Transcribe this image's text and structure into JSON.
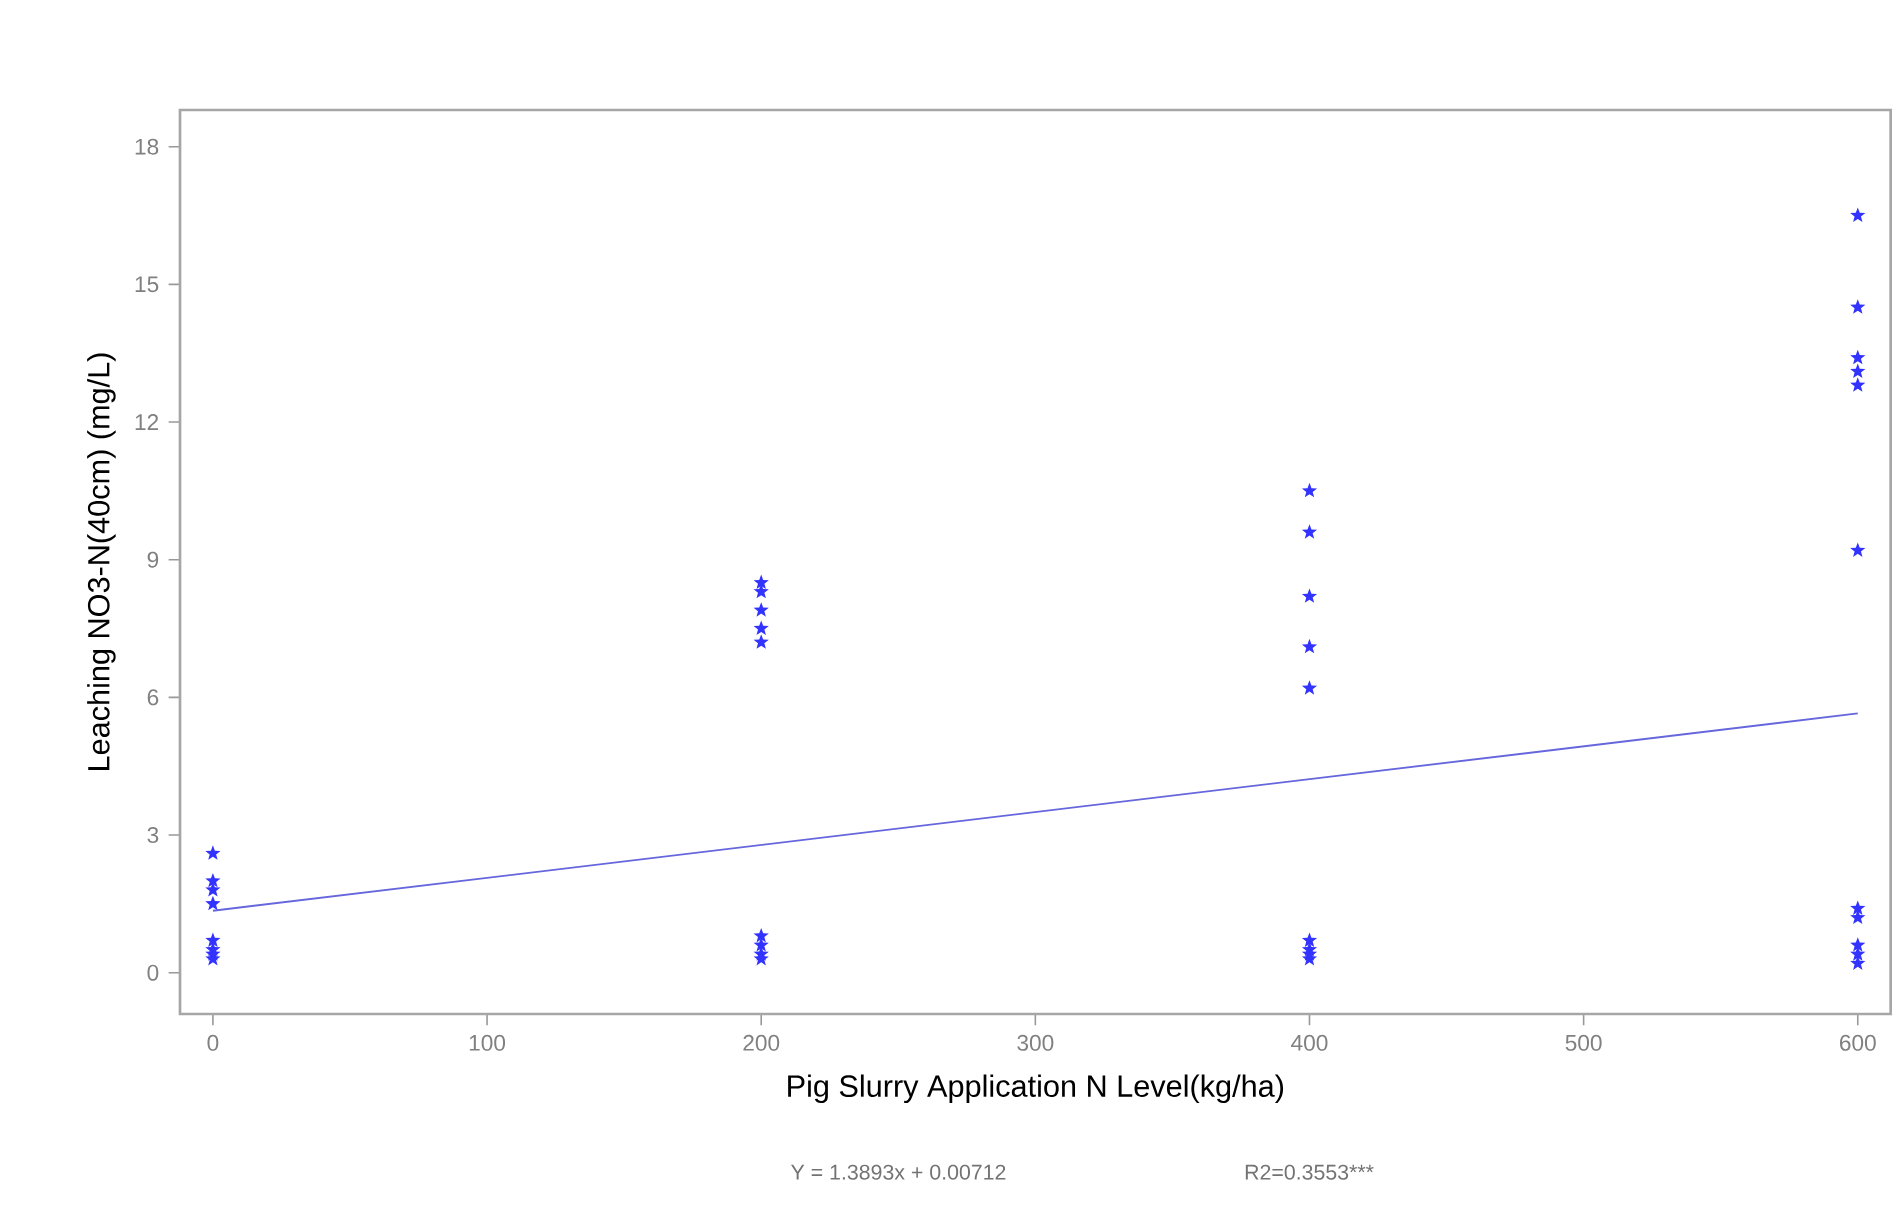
{
  "chart_data": {
    "type": "scatter",
    "xlabel": "Pig Slurry Application N Level(kg/ha)",
    "ylabel": "Leaching NO3-N(40cm) (mg/L)",
    "annotations": [
      "Y = 1.3893x + 0.00712",
      "R2=0.3553***"
    ],
    "xlim": [
      -12,
      612
    ],
    "ylim": [
      -0.9,
      18.8
    ],
    "xticks": [
      0,
      100,
      200,
      300,
      400,
      500,
      600
    ],
    "yticks": [
      0,
      3,
      6,
      9,
      12,
      15,
      18
    ],
    "marker": "star",
    "grid": false,
    "series": [
      {
        "color": "#3333ff",
        "x": [
          0,
          0,
          0,
          0,
          0,
          0,
          0,
          0,
          200,
          200,
          200,
          200,
          200,
          200,
          200,
          200,
          200,
          400,
          400,
          400,
          400,
          400,
          400,
          400,
          400,
          400,
          600,
          600,
          600,
          600,
          600,
          600,
          600,
          600,
          600,
          600,
          600
        ],
        "values": [
          2.6,
          2.0,
          1.8,
          1.5,
          0.7,
          0.5,
          0.4,
          0.3,
          8.5,
          8.3,
          7.9,
          7.5,
          7.2,
          0.8,
          0.6,
          0.4,
          0.3,
          10.5,
          9.6,
          8.2,
          7.1,
          6.2,
          0.7,
          0.5,
          0.4,
          0.3,
          16.5,
          14.5,
          13.4,
          13.1,
          12.8,
          9.2,
          1.4,
          1.2,
          0.6,
          0.4,
          0.2
        ]
      },
      {
        "type": "line",
        "color": "#6666dd",
        "marker": "none",
        "x": [
          0,
          600
        ],
        "values": [
          1.35,
          5.65
        ]
      }
    ]
  }
}
